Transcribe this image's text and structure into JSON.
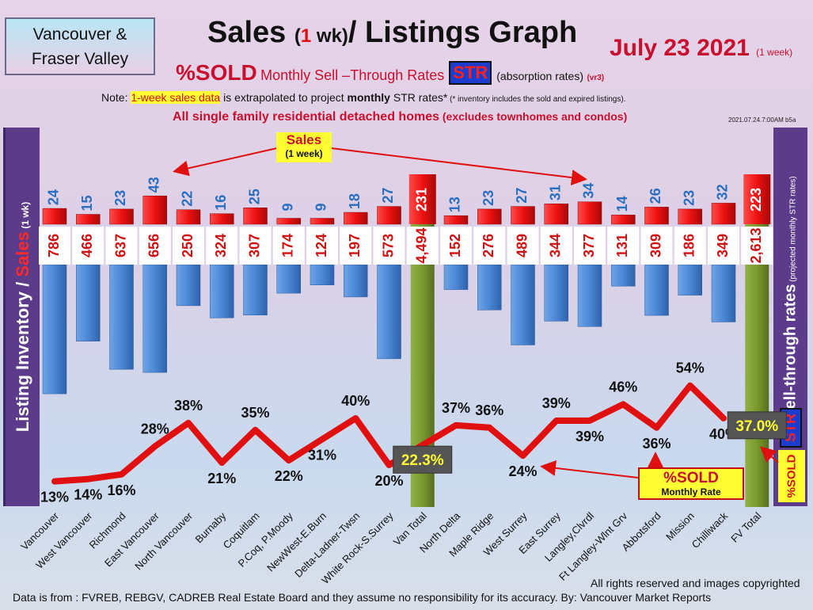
{
  "header": {
    "region_line1": "Vancouver &",
    "region_line2": "Fraser Valley",
    "title_a": "Sales ",
    "title_b": "(",
    "title_c": "1",
    "title_d": " wk)",
    "title_e": "/ Listings Graph",
    "date": "July 23  2021",
    "date_sub": "(1 week)",
    "sub_pct": "%SOLD",
    "sub_mid": "Monthly Sell –Through Rates",
    "sub_str": "STR",
    "sub_abs": "(absorption rates)",
    "sub_vr": "(vr3)",
    "note_a": "Note: ",
    "note_hl": "1-week sales data",
    "note_b": " is extrapolated to project ",
    "note_bold": "monthly",
    "note_c": " STR rates*",
    "note_small": " (* inventory includes the sold and expired listings).",
    "detached_a": "All single family residential detached homes",
    "detached_b": " (excludes townhomes and condos)",
    "timestamp": "2021.07.24.7:00AM b5a"
  },
  "side": {
    "left_a": "Listing Inventory / ",
    "left_b": "Sales",
    "left_c": " (1 wk)",
    "right_a": "Sell-through rates",
    "right_b": " (projected monthly STR rates)",
    "right_str": "STR",
    "right_sold": "%SOLD"
  },
  "callouts": {
    "sales_a": "Sales",
    "sales_b": "(1 week)",
    "sold_a": "%SOLD",
    "sold_b": "Monthly Rate"
  },
  "footer": {
    "rights": "All rights reserved and  images copyrighted",
    "source": "Data is from : FVREB, REBGV, CADREB Real Estate Board and they assume no responsibility for its accuracy. By: Vancouver Market Reports"
  },
  "colors": {
    "sales_bar": "#ee1111",
    "sales_total": "#c01010",
    "inventory_bar": "#4a87d6",
    "total_bar": "#7a9a30",
    "str_line": "#e01010",
    "sales_label": "#2a6fbf",
    "inventory_label": "#d01010"
  },
  "chart_data": {
    "type": "bar",
    "categories": [
      "Vancouver",
      "West Vancouver",
      "Richmond",
      "East Vancouver",
      "North Vancouver",
      "Burnaby",
      "Coquitlam",
      "P.Coq, P.Moody",
      "NewWest-E.Burn",
      "Delta-Ladner-Twsn",
      "White Rock-S.Surrey",
      "Van Total",
      "North Delta",
      "Maple Ridge",
      "West Surrey",
      "East Surrey",
      "Langley,Clvrdl",
      "Ft Langley-Wlnt Grv",
      "Abbotsford",
      "Mission",
      "Chilliwack",
      "FV Total"
    ],
    "series": [
      {
        "name": "Sales",
        "values": [
          24,
          15,
          23,
          43,
          22,
          16,
          25,
          9,
          9,
          18,
          27,
          231,
          13,
          23,
          27,
          31,
          34,
          14,
          26,
          23,
          32,
          223
        ]
      },
      {
        "name": "Listing Inventory",
        "values": [
          786,
          466,
          637,
          656,
          250,
          324,
          307,
          174,
          124,
          197,
          573,
          4494,
          152,
          276,
          489,
          344,
          377,
          131,
          309,
          186,
          349,
          2613
        ]
      },
      {
        "name": "%SOLD",
        "values": [
          13,
          14,
          16,
          28,
          38,
          21,
          35,
          22,
          31,
          40,
          20,
          22.3,
          37,
          36,
          24,
          39,
          39,
          46,
          36,
          54,
          40,
          37.0
        ]
      }
    ],
    "sales_labels": [
      "24",
      "15",
      "23",
      "43",
      "22",
      "16",
      "25",
      "9",
      "9",
      "18",
      "27",
      "231",
      "13",
      "23",
      "27",
      "31",
      "34",
      "14",
      "26",
      "23",
      "32",
      "223"
    ],
    "inventory_labels": [
      "786",
      "466",
      "637",
      "656",
      "250",
      "324",
      "307",
      "174",
      "124",
      "197",
      "573",
      "4,494",
      "152",
      "276",
      "489",
      "344",
      "377",
      "131",
      "309",
      "186",
      "349",
      "2,613"
    ],
    "str_labels": [
      "13%",
      "14%",
      "16%",
      "28%",
      "38%",
      "21%",
      "35%",
      "22%",
      "31%",
      "40%",
      "20%",
      "22.3%",
      "37%",
      "36%",
      "24%",
      "39%",
      "39%",
      "46%",
      "36%",
      "54%",
      "40%",
      "37.0%"
    ],
    "totals": [
      "Van Total",
      "FV Total"
    ]
  }
}
